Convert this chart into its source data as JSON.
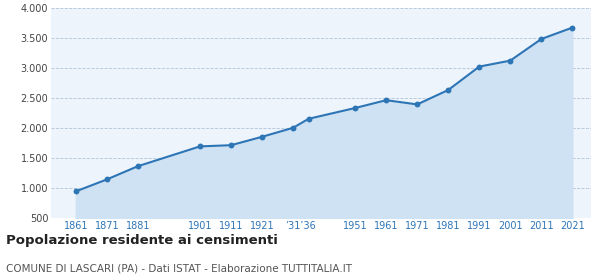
{
  "years": [
    1861,
    1871,
    1881,
    1901,
    1911,
    1921,
    1931,
    1936,
    1951,
    1961,
    1971,
    1981,
    1991,
    2001,
    2011,
    2021
  ],
  "population": [
    950,
    1150,
    1370,
    1700,
    1720,
    1860,
    2010,
    2160,
    2340,
    2470,
    2400,
    2640,
    3030,
    3130,
    3490,
    3680
  ],
  "line_color": "#2e75b6",
  "fill_color": "#cfe2f3",
  "marker_color": "#2e75b6",
  "bg_color": "#eef4fb",
  "grid_color": "#b0c4d8",
  "ylim": [
    500,
    4000
  ],
  "yticks": [
    500,
    1000,
    1500,
    2000,
    2500,
    3000,
    3500,
    4000
  ],
  "title": "Popolazione residente ai censimenti",
  "subtitle": "COMUNE DI LASCARI (PA) - Dati ISTAT - Elaborazione TUTTITALIA.IT",
  "title_fontsize": 9.5,
  "subtitle_fontsize": 7.5
}
